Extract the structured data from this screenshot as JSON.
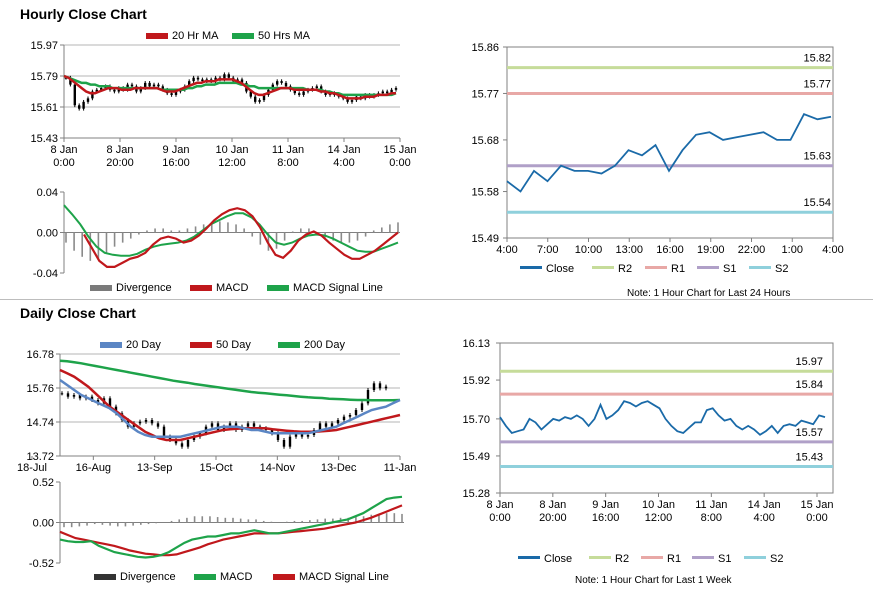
{
  "sections": {
    "hourly_title": "Hourly Close Chart",
    "daily_title": "Daily Close Chart"
  },
  "colors": {
    "ma20": "#c0181c",
    "ma50": "#1ea34a",
    "blue": "#1a6aa8",
    "r2": "#c6dc9a",
    "r1": "#e8a8a6",
    "s1": "#b0a0c8",
    "s2": "#8fd0dc",
    "div": "#8a8a8a"
  },
  "chart_data": [
    {
      "id": "hourly_price",
      "type": "candlestick",
      "title": "",
      "legend": [
        "20 Hr MA",
        "50 Hrs MA"
      ],
      "ylim": [
        15.43,
        15.97
      ],
      "y_ticks": [
        "15.97",
        "15.79",
        "15.61",
        "15.43"
      ],
      "y_tick_values": [
        15.97,
        15.79,
        15.61,
        15.43
      ],
      "x_tick_labels": [
        [
          "8 Jan",
          "0:00"
        ],
        [
          "8 Jan",
          "20:00"
        ],
        [
          "9 Jan",
          "16:00"
        ],
        [
          "10 Jan",
          "12:00"
        ],
        [
          "11 Jan",
          "8:00"
        ],
        [
          "14 Jan",
          "4:00"
        ],
        [
          "15 Jan",
          "0:00"
        ]
      ],
      "close": [
        15.78,
        15.74,
        15.62,
        15.6,
        15.64,
        15.66,
        15.7,
        15.71,
        15.72,
        15.73,
        15.71,
        15.7,
        15.72,
        15.71,
        15.74,
        15.73,
        15.7,
        15.72,
        15.75,
        15.73,
        15.74,
        15.73,
        15.71,
        15.69,
        15.68,
        15.7,
        15.71,
        15.73,
        15.76,
        15.78,
        15.77,
        15.76,
        15.77,
        15.76,
        15.78,
        15.77,
        15.8,
        15.78,
        15.76,
        15.77,
        15.75,
        15.7,
        15.67,
        15.64,
        15.65,
        15.68,
        15.71,
        15.74,
        15.76,
        15.75,
        15.73,
        15.71,
        15.69,
        15.68,
        15.7,
        15.71,
        15.72,
        15.73,
        15.7,
        15.68,
        15.69,
        15.68,
        15.67,
        15.66,
        15.64,
        15.65,
        15.67,
        15.66,
        15.68,
        15.67,
        15.68,
        15.69,
        15.7,
        15.69,
        15.71,
        15.72
      ],
      "ma20": [
        15.79,
        15.78,
        15.76,
        15.74,
        15.72,
        15.7,
        15.69,
        15.69,
        15.7,
        15.71,
        15.72,
        15.72,
        15.72,
        15.71,
        15.71,
        15.71,
        15.72,
        15.72,
        15.72,
        15.72,
        15.72,
        15.72,
        15.71,
        15.7,
        15.7,
        15.7,
        15.71,
        15.72,
        15.73,
        15.74,
        15.75,
        15.75,
        15.76,
        15.76,
        15.76,
        15.77,
        15.77,
        15.77,
        15.77,
        15.76,
        15.75,
        15.73,
        15.71,
        15.69,
        15.68,
        15.68,
        15.69,
        15.7,
        15.71,
        15.72,
        15.72,
        15.72,
        15.71,
        15.71,
        15.71,
        15.71,
        15.71,
        15.71,
        15.7,
        15.7,
        15.69,
        15.69,
        15.68,
        15.67,
        15.66,
        15.66,
        15.66,
        15.66,
        15.67,
        15.67,
        15.67,
        15.68,
        15.68,
        15.68,
        15.69,
        15.69
      ],
      "ma50": [
        15.79,
        15.78,
        15.77,
        15.76,
        15.75,
        15.75,
        15.74,
        15.74,
        15.73,
        15.73,
        15.73,
        15.72,
        15.72,
        15.72,
        15.72,
        15.72,
        15.72,
        15.72,
        15.72,
        15.72,
        15.72,
        15.72,
        15.71,
        15.71,
        15.71,
        15.71,
        15.71,
        15.71,
        15.72,
        15.72,
        15.73,
        15.73,
        15.74,
        15.74,
        15.74,
        15.75,
        15.75,
        15.75,
        15.75,
        15.75,
        15.74,
        15.74,
        15.73,
        15.73,
        15.72,
        15.72,
        15.72,
        15.72,
        15.72,
        15.72,
        15.72,
        15.72,
        15.72,
        15.72,
        15.72,
        15.71,
        15.71,
        15.71,
        15.71,
        15.7,
        15.7,
        15.69,
        15.69,
        15.68,
        15.68,
        15.68,
        15.68,
        15.68,
        15.68,
        15.68,
        15.68,
        15.68,
        15.68,
        15.68,
        15.68,
        15.69
      ]
    },
    {
      "id": "hourly_macd",
      "type": "line+histogram",
      "legend": [
        "Divergence",
        "MACD",
        "MACD Signal Line"
      ],
      "ylim": [
        -0.04,
        0.04
      ],
      "y_ticks": [
        "0.04",
        "0.00",
        "-0.04"
      ],
      "y_tick_values": [
        0.04,
        0.0,
        -0.04
      ],
      "macd": [
        -0.002,
        -0.015,
        -0.028,
        -0.034,
        -0.034,
        -0.03,
        -0.026,
        -0.024,
        -0.02,
        -0.012,
        -0.006,
        -0.004,
        -0.006,
        -0.01,
        -0.008,
        -0.003,
        0.004,
        0.012,
        0.018,
        0.022,
        0.024,
        0.022,
        0.016,
        0.005,
        -0.01,
        -0.022,
        -0.025,
        -0.018,
        -0.008,
        -0.002,
        0.001,
        -0.003,
        -0.01,
        -0.016,
        -0.022,
        -0.026,
        -0.026,
        -0.022,
        -0.018,
        -0.012,
        -0.006,
        0.0
      ],
      "signal": [
        0.027,
        0.018,
        0.008,
        -0.004,
        -0.014,
        -0.02,
        -0.022,
        -0.023,
        -0.023,
        -0.021,
        -0.017,
        -0.014,
        -0.012,
        -0.011,
        -0.01,
        -0.008,
        -0.004,
        0.002,
        0.008,
        0.012,
        0.016,
        0.019,
        0.019,
        0.015,
        0.008,
        -0.002,
        -0.01,
        -0.012,
        -0.01,
        -0.006,
        -0.003,
        -0.002,
        -0.003,
        -0.006,
        -0.01,
        -0.014,
        -0.018,
        -0.019,
        -0.019,
        -0.016,
        -0.013,
        -0.01
      ],
      "divergence": [
        -0.01,
        -0.018,
        -0.024,
        -0.028,
        -0.026,
        -0.02,
        -0.014,
        -0.01,
        -0.006,
        -0.002,
        0.002,
        0.004,
        0.004,
        0.002,
        0.002,
        0.004,
        0.006,
        0.008,
        0.01,
        0.011,
        0.01,
        0.008,
        0.004,
        -0.004,
        -0.012,
        -0.018,
        -0.016,
        -0.008,
        0.001,
        0.004,
        0.004,
        0.0,
        -0.005,
        -0.008,
        -0.01,
        -0.01,
        -0.008,
        -0.004,
        0.002,
        0.005,
        0.008,
        0.01
      ]
    },
    {
      "id": "hourly_pivot",
      "type": "line",
      "legend": [
        "Close",
        "R2",
        "R1",
        "S1",
        "S2"
      ],
      "note": "Note: 1 Hour Chart for Last 24 Hours",
      "ylim": [
        15.49,
        15.86
      ],
      "y_ticks": [
        "15.86",
        "15.77",
        "15.68",
        "15.58",
        "15.49"
      ],
      "y_tick_values": [
        15.86,
        15.77,
        15.68,
        15.58,
        15.49
      ],
      "x_tick_labels": [
        "4:00",
        "7:00",
        "10:00",
        "13:00",
        "16:00",
        "19:00",
        "22:00",
        "1:00",
        "4:00"
      ],
      "close": [
        15.6,
        15.58,
        15.62,
        15.6,
        15.63,
        15.62,
        15.62,
        15.615,
        15.63,
        15.66,
        15.65,
        15.67,
        15.62,
        15.66,
        15.69,
        15.695,
        15.68,
        15.685,
        15.69,
        15.695,
        15.68,
        15.68,
        15.73,
        15.72,
        15.725
      ],
      "levels": {
        "R2": 15.82,
        "R1": 15.77,
        "S1": 15.63,
        "S2": 15.54
      },
      "level_labels": {
        "R2": "15.82",
        "R1": "15.77",
        "S1": "15.63",
        "S2": "15.54"
      }
    },
    {
      "id": "daily_price",
      "type": "candlestick",
      "legend": [
        "20 Day",
        "50 Day",
        "200 Day"
      ],
      "ylim": [
        13.72,
        16.78
      ],
      "y_ticks": [
        "16.78",
        "15.76",
        "14.74",
        "13.72"
      ],
      "y_tick_values": [
        16.78,
        15.76,
        14.74,
        13.72
      ],
      "x_tick_labels": [
        "18-Jul",
        "16-Aug",
        "13-Sep",
        "15-Oct",
        "14-Nov",
        "13-Dec",
        "11-Jan"
      ],
      "close": [
        15.6,
        15.5,
        15.55,
        15.45,
        15.5,
        15.4,
        15.3,
        15.45,
        15.2,
        15.0,
        14.8,
        14.6,
        14.7,
        14.75,
        14.8,
        14.7,
        14.6,
        14.3,
        14.2,
        14.1,
        14.0,
        14.2,
        14.3,
        14.4,
        14.6,
        14.7,
        14.5,
        14.6,
        14.7,
        14.5,
        14.6,
        14.7,
        14.6,
        14.55,
        14.5,
        14.4,
        14.2,
        14.0,
        14.3,
        14.4,
        14.3,
        14.35,
        14.5,
        14.7,
        14.6,
        14.7,
        14.8,
        14.9,
        14.95,
        15.1,
        15.3,
        15.7,
        15.9,
        15.75,
        15.8
      ],
      "ma20": [
        16.0,
        15.85,
        15.7,
        15.55,
        15.45,
        15.35,
        15.25,
        15.15,
        15.0,
        14.8,
        14.6,
        14.45,
        14.35,
        14.3,
        14.3,
        14.3,
        14.3,
        14.3,
        14.35,
        14.4,
        14.45,
        14.5,
        14.55,
        14.6,
        14.6,
        14.6,
        14.55,
        14.5,
        14.5,
        14.45,
        14.4,
        14.4,
        14.4,
        14.4,
        14.4,
        14.4,
        14.45,
        14.5,
        14.55,
        14.6,
        14.7,
        14.8,
        14.9,
        15.0,
        15.1,
        15.15,
        15.2,
        15.3,
        15.4
      ],
      "ma50": [
        16.3,
        16.2,
        16.1,
        15.95,
        15.8,
        15.6,
        15.4,
        15.2,
        15.05,
        14.9,
        14.75,
        14.6,
        14.45,
        14.35,
        14.25,
        14.2,
        14.2,
        14.2,
        14.25,
        14.3,
        14.35,
        14.4,
        14.45,
        14.5,
        14.52,
        14.54,
        14.55,
        14.55,
        14.55,
        14.55,
        14.52,
        14.5,
        14.48,
        14.46,
        14.45,
        14.45,
        14.45,
        14.46,
        14.48,
        14.5,
        14.55,
        14.6,
        14.65,
        14.7,
        14.75,
        14.8,
        14.85,
        14.9,
        14.95
      ],
      "ma200": [
        16.58,
        16.56,
        16.53,
        16.5,
        16.46,
        16.42,
        16.38,
        16.34,
        16.3,
        16.26,
        16.22,
        16.18,
        16.14,
        16.1,
        16.06,
        16.02,
        15.98,
        15.95,
        15.92,
        15.88,
        15.85,
        15.82,
        15.79,
        15.76,
        15.73,
        15.7,
        15.67,
        15.64,
        15.62,
        15.6,
        15.58,
        15.56,
        15.54,
        15.52,
        15.5,
        15.48,
        15.47,
        15.46,
        15.44,
        15.43,
        15.42,
        15.41,
        15.4,
        15.4,
        15.39,
        15.39,
        15.39,
        15.39,
        15.4
      ]
    },
    {
      "id": "daily_macd",
      "type": "line+histogram",
      "legend": [
        "Divergence",
        "MACD",
        "MACD Signal Line"
      ],
      "ylim": [
        -0.52,
        0.52
      ],
      "y_ticks": [
        "0.52",
        "0.00",
        "-0.52"
      ],
      "y_tick_values": [
        0.52,
        0.0,
        -0.52
      ],
      "macd": [
        -0.22,
        -0.24,
        -0.25,
        -0.25,
        -0.24,
        -0.3,
        -0.34,
        -0.38,
        -0.4,
        -0.42,
        -0.44,
        -0.45,
        -0.44,
        -0.42,
        -0.38,
        -0.32,
        -0.26,
        -0.22,
        -0.2,
        -0.18,
        -0.18,
        -0.16,
        -0.14,
        -0.14,
        -0.12,
        -0.1,
        -0.12,
        -0.14,
        -0.14,
        -0.12,
        -0.1,
        -0.08,
        -0.06,
        -0.04,
        -0.02,
        0.0,
        0.02,
        0.04,
        0.08,
        0.12,
        0.18,
        0.24,
        0.3,
        0.32,
        0.33
      ],
      "signal": [
        -0.12,
        -0.16,
        -0.2,
        -0.22,
        -0.24,
        -0.26,
        -0.28,
        -0.3,
        -0.33,
        -0.36,
        -0.38,
        -0.4,
        -0.41,
        -0.42,
        -0.42,
        -0.41,
        -0.38,
        -0.35,
        -0.32,
        -0.28,
        -0.25,
        -0.22,
        -0.2,
        -0.18,
        -0.16,
        -0.14,
        -0.14,
        -0.14,
        -0.14,
        -0.13,
        -0.12,
        -0.11,
        -0.1,
        -0.09,
        -0.08,
        -0.06,
        -0.04,
        -0.02,
        0.0,
        0.03,
        0.06,
        0.1,
        0.14,
        0.18,
        0.22
      ],
      "divergence": [
        -0.06,
        -0.06,
        -0.05,
        -0.04,
        -0.02,
        -0.03,
        -0.04,
        -0.05,
        -0.05,
        -0.04,
        -0.03,
        -0.02,
        -0.01,
        0.0,
        0.02,
        0.04,
        0.06,
        0.08,
        0.08,
        0.08,
        0.07,
        0.06,
        0.06,
        0.05,
        0.04,
        0.04,
        0.02,
        0.01,
        0.0,
        0.01,
        0.02,
        0.02,
        0.03,
        0.04,
        0.05,
        0.05,
        0.06,
        0.06,
        0.07,
        0.08,
        0.1,
        0.11,
        0.12,
        0.12,
        0.11
      ]
    },
    {
      "id": "daily_pivot",
      "type": "line",
      "legend": [
        "Close",
        "R2",
        "R1",
        "S1",
        "S2"
      ],
      "note": "Note: 1 Hour Chart for Last 1 Week",
      "ylim": [
        15.28,
        16.13
      ],
      "y_ticks": [
        "16.13",
        "15.92",
        "15.70",
        "15.49",
        "15.28"
      ],
      "y_tick_values": [
        16.13,
        15.92,
        15.7,
        15.49,
        15.28
      ],
      "x_tick_labels": [
        [
          "8 Jan",
          "0:00"
        ],
        [
          "8 Jan",
          "20:00"
        ],
        [
          "9 Jan",
          "16:00"
        ],
        [
          "10 Jan",
          "12:00"
        ],
        [
          "11 Jan",
          "8:00"
        ],
        [
          "14 Jan",
          "4:00"
        ],
        [
          "15 Jan",
          "0:00"
        ]
      ],
      "close": [
        15.71,
        15.66,
        15.62,
        15.63,
        15.64,
        15.7,
        15.68,
        15.64,
        15.67,
        15.7,
        15.69,
        15.71,
        15.7,
        15.72,
        15.7,
        15.66,
        15.7,
        15.78,
        15.7,
        15.72,
        15.75,
        15.8,
        15.79,
        15.77,
        15.79,
        15.8,
        15.78,
        15.76,
        15.7,
        15.66,
        15.63,
        15.62,
        15.65,
        15.68,
        15.68,
        15.75,
        15.76,
        15.72,
        15.69,
        15.7,
        15.66,
        15.64,
        15.66,
        15.64,
        15.61,
        15.63,
        15.66,
        15.62,
        15.66,
        15.67,
        15.66,
        15.69,
        15.68,
        15.67,
        15.72,
        15.71
      ],
      "levels": {
        "R2": 15.97,
        "R1": 15.84,
        "S1": 15.57,
        "S2": 15.43
      },
      "level_labels": {
        "R2": "15.97",
        "R1": "15.84",
        "S1": "15.57",
        "S2": "15.43"
      }
    }
  ]
}
